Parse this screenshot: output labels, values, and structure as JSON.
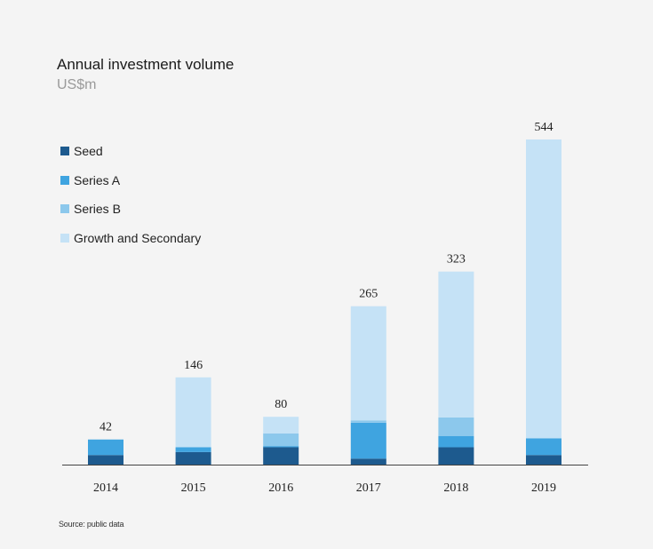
{
  "colors": {
    "seed": "#1d5a8e",
    "series_a": "#3fa4e0",
    "series_b": "#8cc8ec",
    "growth": "#c5e2f6",
    "axis": "#444444"
  },
  "chart_data": {
    "type": "bar",
    "stacked": true,
    "title": "Annual investment volume",
    "subtitle": "US$m",
    "categories": [
      "2014",
      "2015",
      "2016",
      "2017",
      "2018",
      "2019"
    ],
    "totals": [
      "42",
      "146",
      "80",
      "265",
      "323",
      "544"
    ],
    "series": [
      {
        "name": "Seed",
        "color_key": "seed",
        "values": [
          16,
          21,
          29,
          10,
          29,
          16
        ]
      },
      {
        "name": "Series A",
        "color_key": "series_a",
        "values": [
          26,
          8,
          2,
          60,
          19,
          28
        ]
      },
      {
        "name": "Series B",
        "color_key": "series_b",
        "values": [
          0,
          0,
          21,
          4,
          31,
          0
        ]
      },
      {
        "name": "Growth and Secondary",
        "color_key": "growth",
        "values": [
          0,
          117,
          28,
          191,
          244,
          500
        ]
      }
    ],
    "ylim": [
      0,
      544
    ],
    "legend_position": "top-left",
    "grid": false
  },
  "source": "Source: public data"
}
